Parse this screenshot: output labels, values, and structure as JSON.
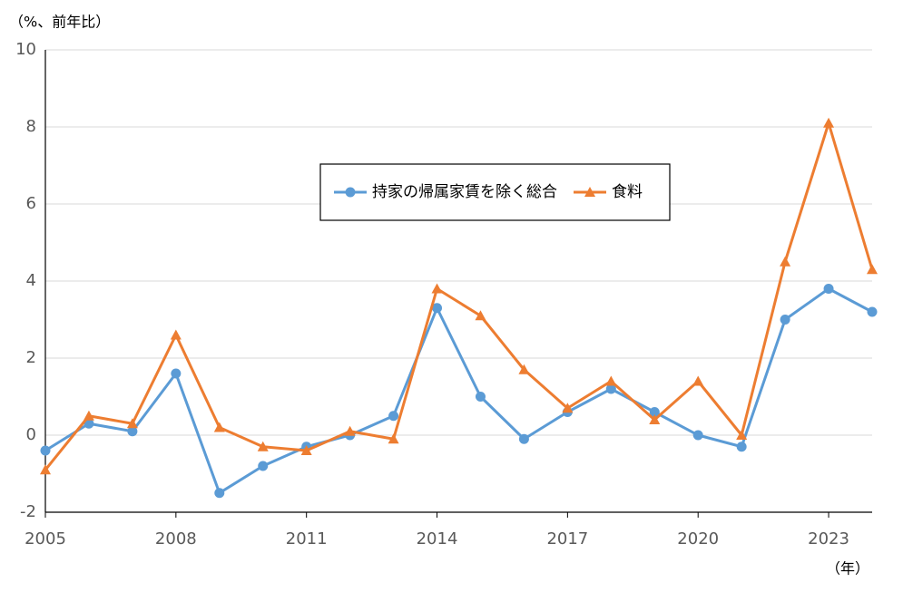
{
  "chart_data": {
    "type": "line",
    "y_unit_label": "（%、前年比）",
    "x_unit_label": "（年）",
    "x": [
      2005,
      2006,
      2007,
      2008,
      2009,
      2010,
      2011,
      2012,
      2013,
      2014,
      2015,
      2016,
      2017,
      2018,
      2019,
      2020,
      2021,
      2022,
      2023,
      2024
    ],
    "series": [
      {
        "name": "持家の帰属家賃を除く総合",
        "color": "#5b9bd5",
        "marker": "circle",
        "values": [
          -0.4,
          0.3,
          0.1,
          1.6,
          -1.5,
          -0.8,
          -0.3,
          0.0,
          0.5,
          3.3,
          1.0,
          -0.1,
          0.6,
          1.2,
          0.6,
          0.0,
          -0.3,
          3.0,
          3.8,
          3.2
        ]
      },
      {
        "name": "食料",
        "color": "#ed7d31",
        "marker": "triangle",
        "values": [
          -0.9,
          0.5,
          0.3,
          2.6,
          0.2,
          -0.3,
          -0.4,
          0.1,
          -0.1,
          3.8,
          3.1,
          1.7,
          0.7,
          1.4,
          0.4,
          1.4,
          0.0,
          4.5,
          8.1,
          4.3
        ]
      }
    ],
    "xlim": [
      2005,
      2024
    ],
    "xticks": [
      2005,
      2008,
      2011,
      2014,
      2017,
      2020,
      2023
    ],
    "ylim": [
      -2,
      10
    ],
    "yticks": [
      -2,
      0,
      2,
      4,
      6,
      8,
      10
    ],
    "grid": true
  }
}
